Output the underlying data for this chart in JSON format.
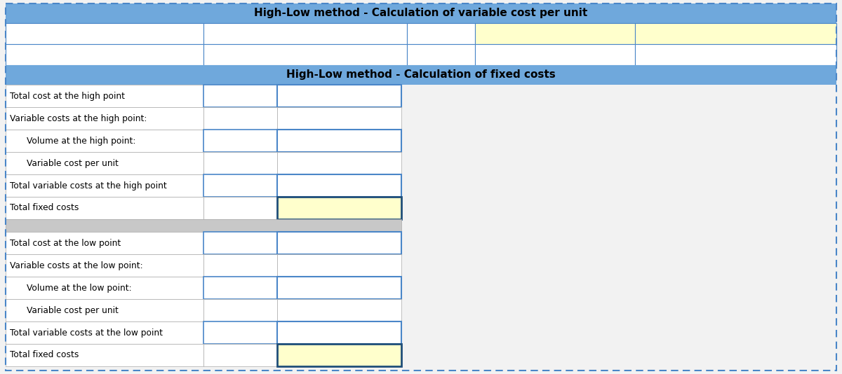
{
  "title1": "High-Low method - Calculation of variable cost per unit",
  "title2": "High-Low method - Calculation of fixed costs",
  "blue": "#6fa8dc",
  "white": "#ffffff",
  "yellow": "#ffffcc",
  "gray": "#c8c8c8",
  "cell_border": "#4a86c8",
  "dark_border": "#1f4e79",
  "outer_border_color": "#4a86c8",
  "bg_color": "#f2f2f2",
  "rows_high": [
    "Total cost at the high point",
    "Variable costs at the high point:",
    "    Volume at the high point:",
    "    Variable cost per unit",
    "Total variable costs at the high point",
    "Total fixed costs"
  ],
  "rows_low": [
    "Total cost at the low point",
    "Variable costs at the low point:",
    "    Volume at the low point:",
    "    Variable cost per unit",
    "Total variable costs at the low point",
    "Total fixed costs"
  ],
  "fig_width": 12.0,
  "fig_height": 5.34,
  "dpi": 100
}
